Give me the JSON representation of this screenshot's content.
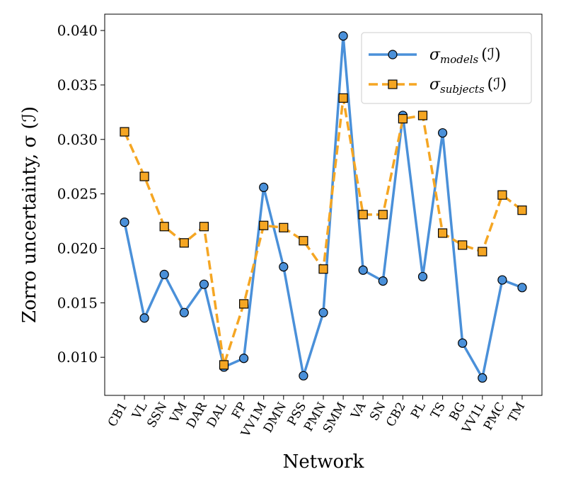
{
  "chart_data": {
    "type": "line",
    "xlabel": "Network",
    "ylabel": "Zorro uncertainty, σ (ℐ)",
    "ylim": [
      0.0065,
      0.0415
    ],
    "yticks": [
      0.01,
      0.015,
      0.02,
      0.025,
      0.03,
      0.035,
      0.04
    ],
    "ytick_labels": [
      "0.010",
      "0.015",
      "0.020",
      "0.025",
      "0.030",
      "0.035",
      "0.040"
    ],
    "grid": false,
    "legend_position": "top-right",
    "categories": [
      "CB1",
      "VL",
      "SSN",
      "VM",
      "DAR",
      "DAL",
      "FP",
      "VV1M",
      "DMN",
      "PSS",
      "PMN",
      "SMM",
      "VA",
      "SN",
      "CB2",
      "PL",
      "TS",
      "BG",
      "VV1L",
      "PMC",
      "TM"
    ],
    "series": [
      {
        "name": "σmodels (ℐ)",
        "name_base": "σ",
        "name_sub": "models",
        "name_tail": "(ℐ)",
        "color": "#4a90d9",
        "linestyle": "solid",
        "marker": "circle",
        "values": [
          0.0224,
          0.0136,
          0.0176,
          0.0141,
          0.0167,
          0.0091,
          0.0099,
          0.0256,
          0.0183,
          0.0083,
          0.0141,
          0.0395,
          0.018,
          0.017,
          0.0322,
          0.0174,
          0.0306,
          0.0113,
          0.0081,
          0.0171,
          0.0164
        ]
      },
      {
        "name": "σsubjects (ℐ)",
        "name_base": "σ",
        "name_sub": "subjects",
        "name_tail": "(ℐ)",
        "color": "#f5a623",
        "linestyle": "dashed",
        "marker": "square",
        "values": [
          0.0307,
          0.0266,
          0.022,
          0.0205,
          0.022,
          0.0093,
          0.0149,
          0.0221,
          0.0219,
          0.0207,
          0.0181,
          0.0338,
          0.0231,
          0.0231,
          0.0319,
          0.0322,
          0.0214,
          0.0203,
          0.0197,
          0.0249,
          0.0235
        ]
      }
    ]
  }
}
